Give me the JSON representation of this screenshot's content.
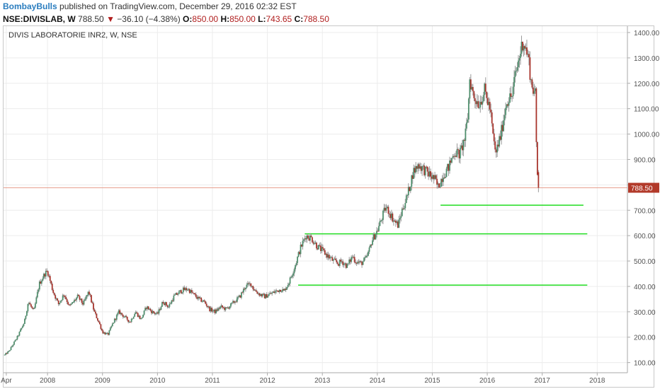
{
  "header": {
    "author": "BombayBulls",
    "published": "published on TradingView.com, December 29, 2016 02:32 EST",
    "symbol": "NSE:DIVISLAB, W",
    "last": "788.50",
    "arrow": "▼",
    "change": "−36.10 (−4.38%)",
    "o_label": "O:",
    "o_value": "850.00",
    "h_label": "H:",
    "h_value": "850.00",
    "l_label": "L:",
    "l_value": "743.65",
    "c_label": "C:",
    "c_value": "788.50"
  },
  "chart_data": {
    "type": "candlestick",
    "title": "DIVIS LABORATORIE INR2, W, NSE",
    "x_tick_labels": [
      "Apr",
      "2008",
      "2009",
      "2010",
      "2011",
      "2012",
      "2013",
      "2014",
      "2015",
      "2016",
      "2017",
      "2018"
    ],
    "x_tick_years": [
      2007.25,
      2008,
      2009,
      2010,
      2011,
      2012,
      2013,
      2014,
      2015,
      2016,
      2017,
      2018
    ],
    "x_range": [
      2007.2,
      2018.55
    ],
    "y_ticks": [
      100,
      200,
      300,
      400,
      500,
      600,
      700,
      800,
      900,
      1000,
      1100,
      1200,
      1300,
      1400
    ],
    "y_range": [
      60,
      1425
    ],
    "y_axis_side": "right",
    "y_tick_suffix": ".00",
    "grid": true,
    "last_price": 788.5,
    "last_price_label": "788.50",
    "colors": {
      "up": "#4f8f6d",
      "down": "#a8342c",
      "wick": "#9a9a9a",
      "level": "#22dd22",
      "price_line": "#e8a090",
      "price_tag": "#b23a2a"
    },
    "price_path": [
      [
        2007.22,
        130
      ],
      [
        2007.3,
        145
      ],
      [
        2007.45,
        200
      ],
      [
        2007.58,
        260
      ],
      [
        2007.65,
        340
      ],
      [
        2007.75,
        300
      ],
      [
        2007.85,
        410
      ],
      [
        2007.95,
        450
      ],
      [
        2008.0,
        460
      ],
      [
        2008.1,
        380
      ],
      [
        2008.2,
        330
      ],
      [
        2008.3,
        370
      ],
      [
        2008.4,
        320
      ],
      [
        2008.55,
        360
      ],
      [
        2008.65,
        330
      ],
      [
        2008.75,
        380
      ],
      [
        2008.85,
        300
      ],
      [
        2008.95,
        250
      ],
      [
        2009.0,
        220
      ],
      [
        2009.1,
        210
      ],
      [
        2009.2,
        260
      ],
      [
        2009.3,
        300
      ],
      [
        2009.4,
        280
      ],
      [
        2009.5,
        260
      ],
      [
        2009.6,
        300
      ],
      [
        2009.7,
        270
      ],
      [
        2009.8,
        320
      ],
      [
        2009.9,
        300
      ],
      [
        2010.0,
        290
      ],
      [
        2010.1,
        340
      ],
      [
        2010.2,
        320
      ],
      [
        2010.3,
        360
      ],
      [
        2010.45,
        385
      ],
      [
        2010.55,
        390
      ],
      [
        2010.65,
        370
      ],
      [
        2010.75,
        350
      ],
      [
        2010.85,
        340
      ],
      [
        2010.95,
        310
      ],
      [
        2011.05,
        300
      ],
      [
        2011.15,
        320
      ],
      [
        2011.25,
        310
      ],
      [
        2011.4,
        340
      ],
      [
        2011.5,
        360
      ],
      [
        2011.6,
        400
      ],
      [
        2011.7,
        410
      ],
      [
        2011.75,
        390
      ],
      [
        2011.85,
        370
      ],
      [
        2011.95,
        360
      ],
      [
        2012.05,
        370
      ],
      [
        2012.15,
        380
      ],
      [
        2012.25,
        390
      ],
      [
        2012.3,
        380
      ],
      [
        2012.4,
        420
      ],
      [
        2012.5,
        480
      ],
      [
        2012.6,
        550
      ],
      [
        2012.7,
        600
      ],
      [
        2012.8,
        590
      ],
      [
        2012.9,
        560
      ],
      [
        2013.0,
        540
      ],
      [
        2013.1,
        520
      ],
      [
        2013.2,
        500
      ],
      [
        2013.3,
        490
      ],
      [
        2013.35,
        500
      ],
      [
        2013.45,
        480
      ],
      [
        2013.55,
        520
      ],
      [
        2013.6,
        500
      ],
      [
        2013.7,
        490
      ],
      [
        2013.8,
        510
      ],
      [
        2013.85,
        540
      ],
      [
        2013.9,
        580
      ],
      [
        2014.0,
        620
      ],
      [
        2014.1,
        680
      ],
      [
        2014.15,
        710
      ],
      [
        2014.2,
        700
      ],
      [
        2014.3,
        660
      ],
      [
        2014.38,
        640
      ],
      [
        2014.45,
        700
      ],
      [
        2014.55,
        760
      ],
      [
        2014.65,
        850
      ],
      [
        2014.75,
        880
      ],
      [
        2014.85,
        860
      ],
      [
        2014.95,
        840
      ],
      [
        2015.05,
        820
      ],
      [
        2015.1,
        790
      ],
      [
        2015.2,
        840
      ],
      [
        2015.3,
        870
      ],
      [
        2015.4,
        930
      ],
      [
        2015.5,
        920
      ],
      [
        2015.6,
        990
      ],
      [
        2015.65,
        1080
      ],
      [
        2015.68,
        1220
      ],
      [
        2015.75,
        1150
      ],
      [
        2015.85,
        1120
      ],
      [
        2015.95,
        1170
      ],
      [
        2016.05,
        1100
      ],
      [
        2016.1,
        1000
      ],
      [
        2016.15,
        920
      ],
      [
        2016.25,
        1000
      ],
      [
        2016.35,
        1130
      ],
      [
        2016.45,
        1150
      ],
      [
        2016.5,
        1220
      ],
      [
        2016.58,
        1300
      ],
      [
        2016.65,
        1370
      ],
      [
        2016.75,
        1300
      ],
      [
        2016.8,
        1200
      ],
      [
        2016.88,
        1150
      ],
      [
        2016.9,
        860
      ],
      [
        2016.95,
        788.5
      ]
    ],
    "horizontal_levels": [
      {
        "value": 720,
        "x_start": 2015.15,
        "x_end": 2017.75
      },
      {
        "value": 607,
        "x_start": 2012.68,
        "x_end": 2017.82
      },
      {
        "value": 405,
        "x_start": 2012.56,
        "x_end": 2017.82
      }
    ]
  }
}
